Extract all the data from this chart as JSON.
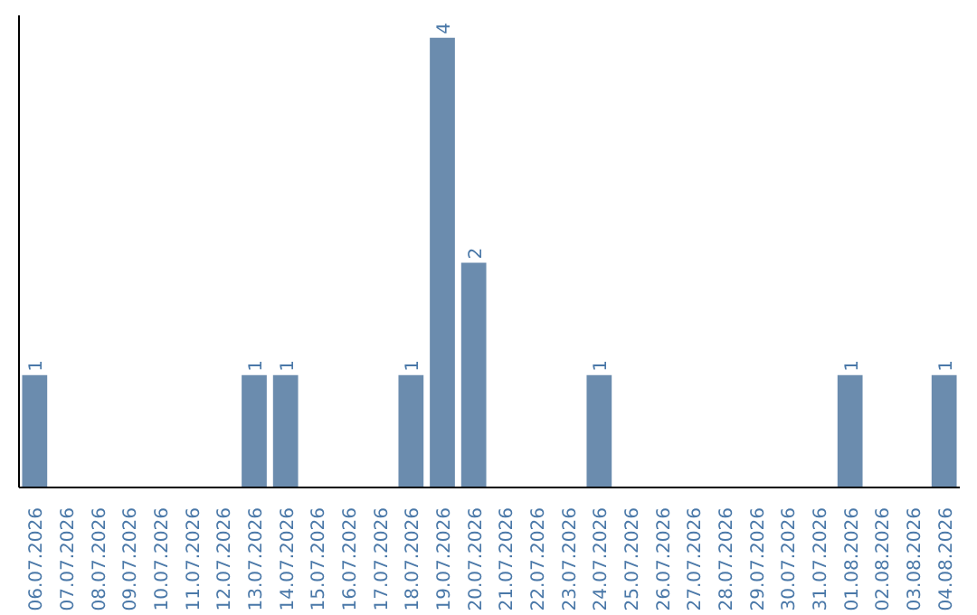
{
  "chart_data": {
    "type": "bar",
    "categories": [
      "06.07.2026",
      "07.07.2026",
      "08.07.2026",
      "09.07.2026",
      "10.07.2026",
      "11.07.2026",
      "12.07.2026",
      "13.07.2026",
      "14.07.2026",
      "15.07.2026",
      "16.07.2026",
      "17.07.2026",
      "18.07.2026",
      "19.07.2026",
      "20.07.2026",
      "21.07.2026",
      "22.07.2026",
      "23.07.2026",
      "24.07.2026",
      "25.07.2026",
      "26.07.2026",
      "27.07.2026",
      "28.07.2026",
      "29.07.2026",
      "30.07.2026",
      "31.07.2026",
      "01.08.2026",
      "02.08.2026",
      "03.08.2026",
      "04.08.2026"
    ],
    "values": [
      1,
      0,
      0,
      0,
      0,
      0,
      0,
      1,
      1,
      0,
      0,
      0,
      1,
      4,
      2,
      0,
      0,
      0,
      1,
      0,
      0,
      0,
      0,
      0,
      0,
      0,
      1,
      0,
      0,
      1
    ],
    "value_labels": [
      "1",
      null,
      null,
      null,
      null,
      null,
      null,
      "1",
      "1",
      null,
      null,
      null,
      "1",
      "4",
      "2",
      null,
      null,
      null,
      "1",
      null,
      null,
      null,
      null,
      null,
      null,
      null,
      "1",
      null,
      null,
      "1"
    ],
    "color": "#6b8cae",
    "ylim": [
      0,
      4.2
    ],
    "tick_labels": "x",
    "grid": false
  }
}
